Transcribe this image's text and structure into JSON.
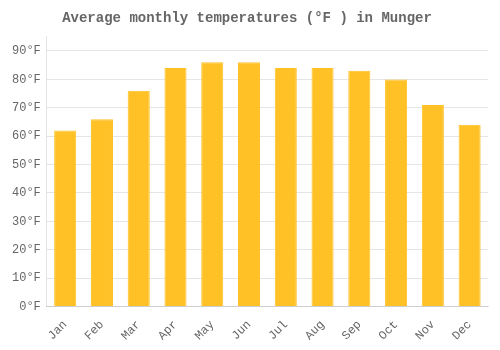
{
  "chart_data": {
    "type": "bar",
    "title": "Average monthly temperatures (°F ) in Munger",
    "categories": [
      "Jan",
      "Feb",
      "Mar",
      "Apr",
      "May",
      "Jun",
      "Jul",
      "Aug",
      "Sep",
      "Oct",
      "Nov",
      "Dec"
    ],
    "values": [
      62,
      66,
      76,
      84,
      86,
      86,
      84,
      84,
      83,
      80,
      71,
      64
    ],
    "color": "#FFC125",
    "ylim": [
      0,
      95
    ],
    "yticks": [
      {
        "value": 0,
        "label": "0°F"
      },
      {
        "value": 10,
        "label": "10°F"
      },
      {
        "value": 20,
        "label": "20°F"
      },
      {
        "value": 30,
        "label": "30°F"
      },
      {
        "value": 40,
        "label": "40°F"
      },
      {
        "value": 50,
        "label": "50°F"
      },
      {
        "value": 60,
        "label": "60°F"
      },
      {
        "value": 70,
        "label": "70°F"
      },
      {
        "value": 80,
        "label": "80°F"
      },
      {
        "value": 90,
        "label": "90°F"
      }
    ],
    "grid": true
  }
}
